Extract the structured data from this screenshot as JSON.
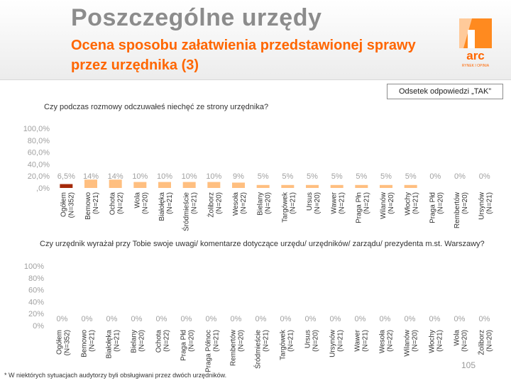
{
  "header": {
    "title": "Poszczególne urzędy",
    "subtitle": "Ocena sposobu załatwienia przedstawionej sprawy przez urzędnika (3)"
  },
  "logo": {
    "text": "arc",
    "tagline": "RYNEK I OPINIA"
  },
  "legend": "Odsetek odpowiedzi „TAK”",
  "colors": {
    "accent": "#ff6600",
    "bar_light": "#ffbf80",
    "bar_dark": "#a52a0a",
    "axis_text": "#a0a0a0",
    "title_gray": "#8c8c8c"
  },
  "chart_data": [
    {
      "type": "bar",
      "title": "Czy podczas rozmowy odczuwałeś niechęć ze strony urzędnika?",
      "yticks": [
        "100,0%",
        "80,0%",
        "60,0%",
        "40,0%",
        "20,0%",
        ",0%"
      ],
      "ylim": [
        0,
        100
      ],
      "categories": [
        "Ogółem (N=352)",
        "Bemowo (N=21)",
        "Ochota (N=22)",
        "Wola (N=20)",
        "Białołęka (N=21)",
        "Śródmieście (N=21)",
        "Żoliborz (N=20)",
        "Wesoła (N=22)",
        "Bielany (N=20)",
        "Targówek (N=21)",
        "Ursus (N=20)",
        "Wawer (N=21)",
        "Praga Płn (N=21)",
        "Wilanów (N=20)",
        "Włochy (N=21)",
        "Praga Płd (N=20)",
        "Rembertów (N=20)",
        "Ursynów (N=21)"
      ],
      "values": [
        6.5,
        14,
        14,
        10,
        10,
        10,
        10,
        9,
        5,
        5,
        5,
        5,
        5,
        5,
        5,
        0,
        0,
        0
      ],
      "value_labels": [
        "6,5%",
        "14%",
        "14%",
        "10%",
        "10%",
        "10%",
        "10%",
        "9%",
        "5%",
        "5%",
        "5%",
        "5%",
        "5%",
        "5%",
        "5%",
        "0%",
        "0%",
        "0%"
      ]
    },
    {
      "type": "bar",
      "title": "Czy urzędnik wyrażał przy Tobie swoje uwagi/ komentarze dotyczące urzędu/ urzędników/ zarządu/ prezydenta m.st. Warszawy?",
      "yticks": [
        "100%",
        "80%",
        "60%",
        "40%",
        "20%",
        "0%"
      ],
      "ylim": [
        0,
        100
      ],
      "categories": [
        "Ogółem (N=352)",
        "Bemowo (N=21)",
        "Białołęka (N=21)",
        "Bielany (N=20)",
        "Ochota (N=22)",
        "Praga Płd (N=20)",
        "Praga Północ (N=21)",
        "Rembertów (N=20)",
        "Śródmieście (N=21)",
        "Targówek (N=21)",
        "Ursus (N=20)",
        "Ursynów (N=21)",
        "Wawer (N=21)",
        "Wesoła (N=22)",
        "Wilanów (N=20)",
        "Włochy (N=21)",
        "Wola (N=20)",
        "Żoliborz (N=20)"
      ],
      "values": [
        0,
        0,
        0,
        0,
        0,
        0,
        0,
        0,
        0,
        0,
        0,
        0,
        0,
        0,
        0,
        0,
        0,
        0
      ],
      "value_labels": [
        "0%",
        "0%",
        "0%",
        "0%",
        "0%",
        "0%",
        "0%",
        "0%",
        "0%",
        "0%",
        "0%",
        "0%",
        "0%",
        "0%",
        "0%",
        "0%",
        "0%",
        "0%"
      ]
    }
  ],
  "footnote": "* W niektórych sytuacjach audytorzy byli obsługiwani przez dwóch urzędników.",
  "page_number": "105"
}
